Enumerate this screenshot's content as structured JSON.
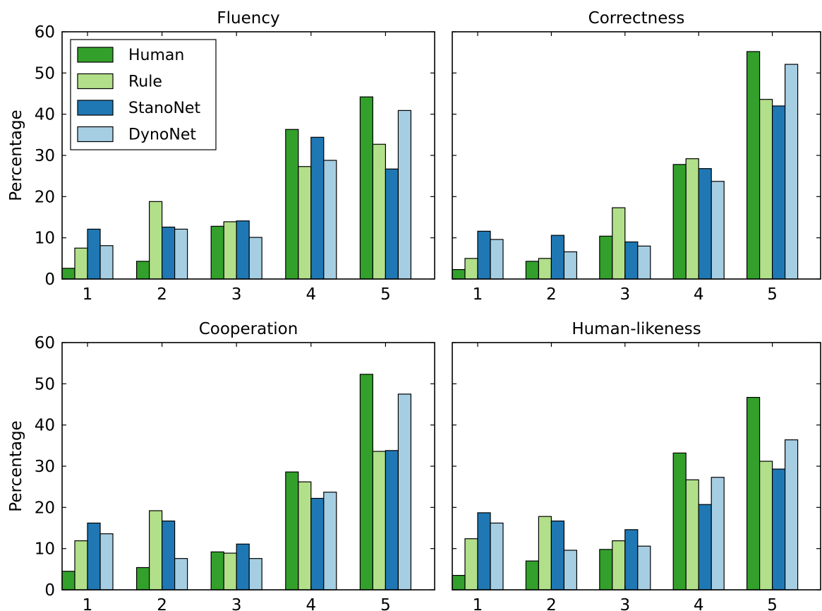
{
  "chart_data": {
    "type": "bar",
    "categories": [
      "1",
      "2",
      "3",
      "4",
      "5"
    ],
    "ylabel": "Percentage",
    "ylim": [
      0,
      60
    ],
    "yticks": [
      0,
      10,
      20,
      30,
      40,
      50,
      60
    ],
    "legend": {
      "placement": "top-left of first panel",
      "entries": [
        "Human",
        "Rule",
        "StanoNet",
        "DynoNet"
      ]
    },
    "series_colors": {
      "Human": "#33a02c",
      "Rule": "#b2df8a",
      "StanoNet": "#1f78b4",
      "DynoNet": "#a6cee3"
    },
    "panels": [
      {
        "title": "Fluency",
        "series": [
          {
            "name": "Human",
            "values": [
              2.6,
              4.3,
              12.8,
              36.3,
              44.2
            ]
          },
          {
            "name": "Rule",
            "values": [
              7.5,
              18.8,
              13.9,
              27.3,
              32.7
            ]
          },
          {
            "name": "StanoNet",
            "values": [
              12.1,
              12.6,
              14.1,
              34.4,
              26.7
            ]
          },
          {
            "name": "DynoNet",
            "values": [
              8.1,
              12.1,
              10.1,
              28.8,
              40.9
            ]
          }
        ]
      },
      {
        "title": "Correctness",
        "series": [
          {
            "name": "Human",
            "values": [
              2.3,
              4.3,
              10.4,
              27.8,
              55.2
            ]
          },
          {
            "name": "Rule",
            "values": [
              5.0,
              5.0,
              17.3,
              29.2,
              43.6
            ]
          },
          {
            "name": "StanoNet",
            "values": [
              11.6,
              10.6,
              9.0,
              26.8,
              42.0
            ]
          },
          {
            "name": "DynoNet",
            "values": [
              9.6,
              6.6,
              8.0,
              23.7,
              52.1
            ]
          }
        ]
      },
      {
        "title": "Cooperation",
        "series": [
          {
            "name": "Human",
            "values": [
              4.5,
              5.4,
              9.2,
              28.6,
              52.3
            ]
          },
          {
            "name": "Rule",
            "values": [
              11.9,
              19.2,
              8.9,
              26.2,
              33.6
            ]
          },
          {
            "name": "StanoNet",
            "values": [
              16.2,
              16.7,
              11.1,
              22.2,
              33.8
            ]
          },
          {
            "name": "DynoNet",
            "values": [
              13.6,
              7.6,
              7.6,
              23.7,
              47.5
            ]
          }
        ]
      },
      {
        "title": "Human-likeness",
        "series": [
          {
            "name": "Human",
            "values": [
              3.5,
              7.0,
              9.8,
              33.2,
              46.7
            ]
          },
          {
            "name": "Rule",
            "values": [
              12.4,
              17.8,
              11.9,
              26.7,
              31.2
            ]
          },
          {
            "name": "StanoNet",
            "values": [
              18.7,
              16.7,
              14.6,
              20.7,
              29.3
            ]
          },
          {
            "name": "DynoNet",
            "values": [
              16.2,
              9.6,
              10.6,
              27.3,
              36.4
            ]
          }
        ]
      }
    ]
  }
}
